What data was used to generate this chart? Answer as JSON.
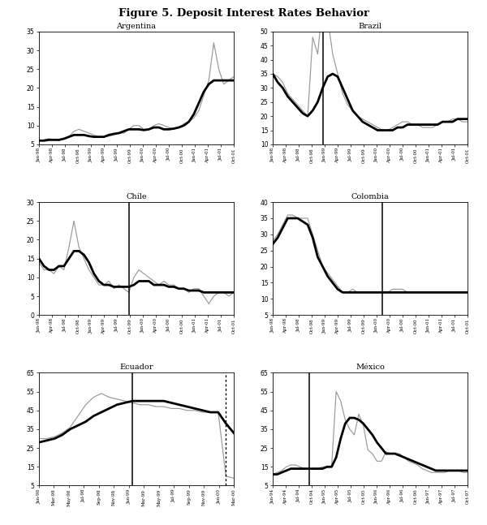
{
  "title": "Figure 5. Deposit Interest Rates Behavior",
  "panels": [
    {
      "title": "Argentina",
      "xlabels": [
        "Jan-98",
        "Apr-98",
        "Jul-98",
        "Oct-98",
        "Jan-99",
        "Apr-99",
        "Jul-99",
        "Oct-99",
        "Jan-00",
        "Apr-00",
        "Jul-00",
        "Oct-00",
        "Jan-01",
        "Apr-01",
        "Jul-01",
        "Oct-01"
      ],
      "ylim": [
        5,
        35
      ],
      "yticks": [
        5,
        10,
        15,
        20,
        25,
        30,
        35
      ],
      "vline_idx": null,
      "vline2_idx": null,
      "thin_line": [
        6,
        6.2,
        6.5,
        6.3,
        6,
        6.5,
        7,
        8.5,
        9,
        8.5,
        8,
        7.5,
        7,
        7,
        7.2,
        7.5,
        8,
        8,
        9,
        10,
        10,
        9,
        9,
        10,
        10.5,
        10,
        9.5,
        9,
        9.5,
        10.5,
        11,
        12,
        14,
        18,
        22,
        32,
        25,
        21,
        22,
        23
      ],
      "thick_line": [
        6,
        6,
        6.2,
        6.2,
        6.2,
        6.5,
        7,
        7.5,
        7.5,
        7.5,
        7.2,
        7,
        7,
        7,
        7.5,
        7.8,
        8,
        8.5,
        9,
        9,
        9,
        8.8,
        9,
        9.5,
        9.5,
        9,
        9,
        9.2,
        9.5,
        10,
        11,
        13,
        16,
        19,
        21,
        22,
        22,
        22,
        22,
        22
      ]
    },
    {
      "title": "Brazil",
      "xlabels": [
        "Jan-98",
        "Apr-98",
        "Jul-98",
        "Oct-98",
        "Jan-99",
        "Apr-99",
        "Jul-99",
        "Oct-99",
        "Jan-00",
        "Apr-00",
        "Jul-00",
        "Oct-00",
        "Jan-01",
        "Apr-01",
        "Jul-01",
        "Oct-01"
      ],
      "ylim": [
        10,
        50
      ],
      "yticks": [
        10,
        15,
        20,
        25,
        30,
        35,
        40,
        45,
        50
      ],
      "vline_idx": 10,
      "vline2_idx": null,
      "thin_line": [
        35,
        34,
        32,
        28,
        26,
        24,
        22,
        20,
        48,
        42,
        60,
        55,
        42,
        35,
        28,
        24,
        22,
        20,
        19,
        18,
        17,
        16,
        15,
        15,
        16,
        17,
        18,
        18,
        17,
        17,
        16,
        16,
        16,
        17,
        18,
        18,
        19,
        19,
        18,
        18
      ],
      "thick_line": [
        35,
        32,
        30,
        27,
        25,
        23,
        21,
        20,
        22,
        25,
        30,
        34,
        35,
        34,
        30,
        26,
        22,
        20,
        18,
        17,
        16,
        15,
        15,
        15,
        15,
        16,
        16,
        17,
        17,
        17,
        17,
        17,
        17,
        17,
        18,
        18,
        18,
        19,
        19,
        19
      ]
    },
    {
      "title": "Chile",
      "xlabels": [
        "Jan-98",
        "Apr-98",
        "Jul-98",
        "Oct-98",
        "Jan-99",
        "Apr-99",
        "Jul-99",
        "Oct-99",
        "Jan-00",
        "Apr-00",
        "Jul-00",
        "Oct-00",
        "Jan-01",
        "Apr-01",
        "Jul-01",
        "Oct-01"
      ],
      "ylim": [
        0,
        30
      ],
      "yticks": [
        0,
        5,
        10,
        15,
        20,
        25,
        30
      ],
      "vline_idx": 18,
      "vline2_idx": null,
      "thin_line": [
        14,
        12,
        12,
        11,
        13,
        12,
        18,
        25,
        18,
        15,
        12,
        10,
        8,
        8,
        9,
        7,
        8,
        7,
        6,
        10,
        12,
        11,
        10,
        9,
        8,
        9,
        8,
        8,
        7,
        7,
        6,
        7,
        7,
        5,
        3,
        5,
        6,
        6,
        5,
        6
      ],
      "thick_line": [
        15,
        13,
        12,
        12,
        13,
        13,
        15,
        17,
        17,
        16,
        14,
        11,
        9,
        8,
        8,
        7.5,
        7.5,
        7.5,
        7.5,
        8,
        9,
        9,
        9,
        8,
        8,
        8,
        7.5,
        7.5,
        7,
        7,
        6.5,
        6.5,
        6.5,
        6,
        6,
        6,
        6,
        6,
        6,
        6
      ]
    },
    {
      "title": "Colombia",
      "xlabels": [
        "Jan-98",
        "Apr-98",
        "Jul-98",
        "Oct-98",
        "Jan-99",
        "Apr-99",
        "Jul-99",
        "Oct-99",
        "Jan-00",
        "Apr-00",
        "Jul-00",
        "Oct-00",
        "Jan-01",
        "Apr-01",
        "Jul-01",
        "Oct-01"
      ],
      "ylim": [
        5,
        40
      ],
      "yticks": [
        5,
        10,
        15,
        20,
        25,
        30,
        35,
        40
      ],
      "vline_idx": 22,
      "vline2_idx": null,
      "thin_line": [
        28,
        30,
        33,
        36,
        36,
        35,
        35,
        35,
        30,
        25,
        20,
        18,
        16,
        14,
        12,
        12,
        13,
        12,
        12,
        12,
        12,
        12,
        12,
        12,
        13,
        13,
        13,
        12,
        12,
        12,
        12,
        12,
        12,
        12,
        12,
        12,
        12,
        12,
        12,
        12
      ],
      "thick_line": [
        27,
        29,
        32,
        35,
        35,
        35,
        34,
        33,
        29,
        23,
        20,
        17,
        15,
        13,
        12,
        12,
        12,
        12,
        12,
        12,
        12,
        12,
        12,
        12,
        12,
        12,
        12,
        12,
        12,
        12,
        12,
        12,
        12,
        12,
        12,
        12,
        12,
        12,
        12,
        12
      ]
    },
    {
      "title": "Ecuador",
      "xlabels": [
        "Jan-98",
        "Mar-98",
        "May-98",
        "Jul-98",
        "Sep-98",
        "Nov-98",
        "Jan-99",
        "Mar-99",
        "May-99",
        "Jul-99",
        "Sep-99",
        "Nov-99",
        "Jan-00",
        "Mar-00"
      ],
      "ylim": [
        5,
        65
      ],
      "yticks": [
        5,
        15,
        25,
        35,
        45,
        55,
        65
      ],
      "vline_idx": 12,
      "vline2_idx": 24,
      "thin_line": [
        30,
        30,
        31,
        33,
        36,
        42,
        48,
        52,
        54,
        52,
        51,
        50,
        49,
        48,
        48,
        47,
        47,
        46,
        46,
        45,
        45,
        44,
        44,
        44,
        10,
        9
      ],
      "thick_line": [
        28,
        29,
        30,
        32,
        35,
        37,
        39,
        42,
        44,
        46,
        48,
        49,
        50,
        50,
        50,
        50,
        50,
        49,
        48,
        47,
        46,
        45,
        44,
        44,
        38,
        33
      ]
    },
    {
      "title": "México",
      "xlabels": [
        "Jan-94",
        "Apr-94",
        "Jul-94",
        "Oct-94",
        "Jan-95",
        "Apr-95",
        "Jul-95",
        "Oct-95",
        "Jan-96",
        "Apr-96",
        "Jul-96",
        "Oct-96",
        "Jan-97",
        "Apr-97",
        "Jul-97",
        "Oct-97"
      ],
      "ylim": [
        5,
        65
      ],
      "yticks": [
        5,
        15,
        25,
        35,
        45,
        55,
        65
      ],
      "vline_idx": 8,
      "vline2_idx": null,
      "thin_line": [
        11,
        12,
        13,
        15,
        16,
        16,
        15,
        14,
        14,
        14,
        14,
        15,
        15,
        15,
        55,
        50,
        40,
        35,
        32,
        43,
        37,
        24,
        22,
        18,
        18,
        23,
        22,
        22,
        22,
        20,
        18,
        17,
        16,
        14,
        13,
        12,
        12,
        12,
        12,
        13,
        13,
        13,
        12,
        12
      ],
      "thick_line": [
        11,
        11,
        12,
        13,
        14,
        14,
        14,
        14,
        14,
        14,
        14,
        14,
        15,
        15,
        20,
        30,
        38,
        41,
        41,
        40,
        38,
        35,
        32,
        28,
        25,
        22,
        22,
        22,
        21,
        20,
        19,
        18,
        17,
        16,
        15,
        14,
        13,
        13,
        13,
        13,
        13,
        13,
        13,
        13
      ]
    }
  ]
}
